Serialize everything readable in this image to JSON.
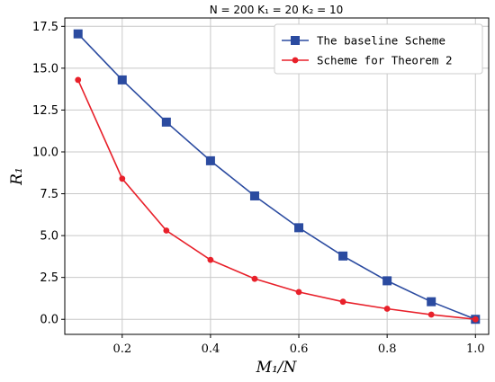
{
  "chart_data": {
    "type": "line",
    "title": "N = 200   K₁ = 20   K₂ = 10",
    "xlabel": "M₁/N",
    "ylabel": "R₁",
    "xlim": [
      0.07,
      1.03
    ],
    "ylim": [
      -0.9,
      18.0
    ],
    "xticks": [
      0.2,
      0.4,
      0.6,
      0.8,
      1.0
    ],
    "xtick_labels": [
      "0.2",
      "0.4",
      "0.6",
      "0.8",
      "1.0"
    ],
    "yticks": [
      0.0,
      2.5,
      5.0,
      7.5,
      10.0,
      12.5,
      15.0,
      17.5
    ],
    "ytick_labels": [
      "0.0",
      "2.5",
      "5.0",
      "7.5",
      "10.0",
      "12.5",
      "15.0",
      "17.5"
    ],
    "grid": true,
    "legend_position": "top-right",
    "x": [
      0.1,
      0.2,
      0.3,
      0.4,
      0.5,
      0.6,
      0.7,
      0.8,
      0.9,
      1.0
    ],
    "series": [
      {
        "name": "The baseline Scheme",
        "color": "#2b4ba0",
        "marker": "square",
        "values": [
          17.05,
          14.3,
          11.78,
          9.47,
          7.37,
          5.47,
          3.78,
          2.3,
          1.05,
          0.0
        ]
      },
      {
        "name": "Scheme for Theorem 2",
        "color": "#e8202a",
        "marker": "circle",
        "values": [
          14.3,
          8.4,
          5.3,
          3.55,
          2.42,
          1.63,
          1.05,
          0.63,
          0.28,
          0.0
        ]
      }
    ]
  }
}
